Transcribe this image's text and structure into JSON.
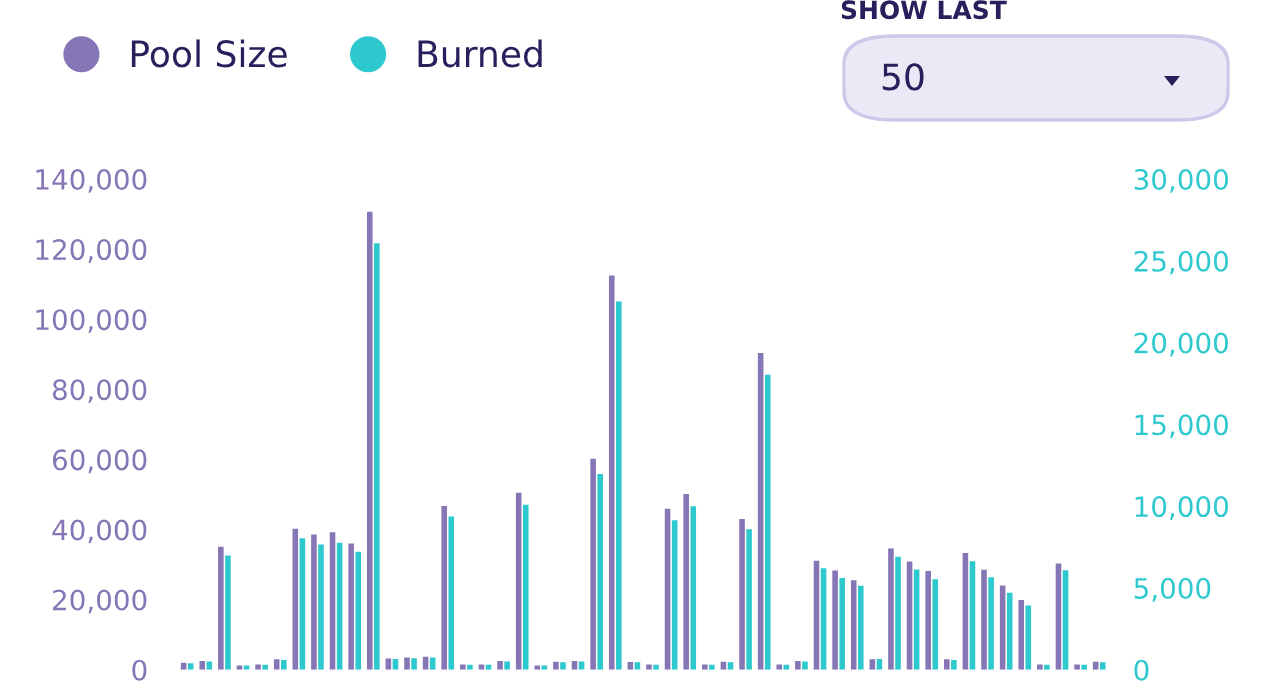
{
  "chart_data": {
    "type": "bar",
    "categories": [
      null,
      null,
      null,
      null,
      null,
      null,
      null,
      null,
      null,
      null,
      null,
      null,
      null,
      null,
      null,
      null,
      null,
      null,
      null,
      null,
      null,
      null,
      null,
      null,
      null,
      null,
      null,
      null,
      null,
      null,
      null,
      null,
      null,
      null,
      null,
      null,
      null,
      null,
      null,
      null,
      null,
      null,
      null,
      null,
      null,
      null,
      null,
      null,
      null,
      null
    ],
    "series": [
      {
        "name": "Pool Size",
        "color": "#8676b6",
        "values": [
          2000,
          2500,
          35100,
          1200,
          1500,
          3000,
          40200,
          38600,
          39200,
          36000,
          130700,
          3200,
          3500,
          3700,
          46700,
          1500,
          1500,
          2500,
          50500,
          1200,
          2300,
          2500,
          60200,
          112500,
          2200,
          1500,
          45900,
          50100,
          1500,
          2300,
          43000,
          90400,
          1500,
          2500,
          31100,
          28300,
          25500,
          3000,
          34600,
          30900,
          28200,
          3000,
          33300,
          28500,
          24000,
          19900,
          1500,
          30300,
          1500,
          2300
        ]
      },
      {
        "name": "Burned",
        "color": "#2ec9cf",
        "axis": "y2",
        "values": [
          400,
          500,
          6980,
          250,
          300,
          600,
          8040,
          7650,
          7760,
          7220,
          26080,
          650,
          700,
          750,
          9370,
          300,
          300,
          500,
          10080,
          250,
          450,
          500,
          11960,
          22510,
          450,
          300,
          9140,
          10000,
          300,
          450,
          8590,
          18040,
          300,
          500,
          6200,
          5610,
          5140,
          650,
          6900,
          6120,
          5530,
          600,
          6630,
          5650,
          4710,
          3920,
          300,
          6080,
          300,
          450
        ]
      }
    ],
    "ylim": [
      0,
      140000
    ],
    "yticks": [
      {
        "value": 0,
        "label": "0"
      },
      {
        "value": 20000,
        "label": "20,000"
      },
      {
        "value": 40000,
        "label": "40,000"
      },
      {
        "value": 60000,
        "label": "60,000"
      },
      {
        "value": 80000,
        "label": "80,000"
      },
      {
        "value": 100000,
        "label": "100,000"
      },
      {
        "value": 120000,
        "label": "120,000"
      },
      {
        "value": 140000,
        "label": "140,000"
      }
    ],
    "y2lim": [
      0,
      30000
    ],
    "y2ticks": [
      {
        "value": 0,
        "label": "0"
      },
      {
        "value": 5000,
        "label": "5,000"
      },
      {
        "value": 10000,
        "label": "10,000"
      },
      {
        "value": 15000,
        "label": "15,000"
      },
      {
        "value": 20000,
        "label": "20,000"
      },
      {
        "value": 25000,
        "label": "25,000"
      },
      {
        "value": 30000,
        "label": "30,000"
      }
    ],
    "legend": "top left",
    "grid": false,
    "annotations": [
      "SHOW LAST",
      "50"
    ]
  }
}
